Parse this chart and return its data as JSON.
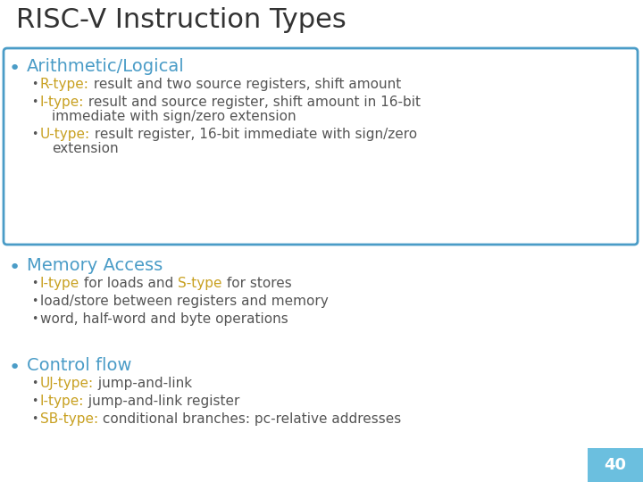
{
  "title": "RISC-V Instruction Types",
  "title_color": "#333333",
  "title_fontsize": 22,
  "background_color": "#ffffff",
  "section_heading_color": "#4a9cc7",
  "bullet_dot_color": "#4a9cc7",
  "orange_color": "#c8a020",
  "body_color": "#555555",
  "box_border_color": "#4a9cc7",
  "page_number": "40",
  "page_number_bg": "#6bbfdf",
  "sections": [
    {
      "heading": "Arithmetic/Logical",
      "has_box": true,
      "bullets": [
        {
          "line1_parts": [
            {
              "text": "R-type:",
              "color": "#c8a020",
              "bold": false
            },
            {
              "text": " result and two source registers, shift amount",
              "color": "#555555",
              "bold": false
            }
          ],
          "line2_parts": []
        },
        {
          "line1_parts": [
            {
              "text": "I-type:",
              "color": "#c8a020",
              "bold": false
            },
            {
              "text": " result and source register, shift amount in 16-bit",
              "color": "#555555",
              "bold": false
            }
          ],
          "line2_parts": [
            {
              "text": "immediate with sign/zero extension",
              "color": "#555555",
              "bold": false
            }
          ]
        },
        {
          "line1_parts": [
            {
              "text": "U-type:",
              "color": "#c8a020",
              "bold": false
            },
            {
              "text": " result register, 16-bit immediate with sign/zero",
              "color": "#555555",
              "bold": false
            }
          ],
          "line2_parts": [
            {
              "text": "extension",
              "color": "#555555",
              "bold": false
            }
          ]
        }
      ]
    },
    {
      "heading": "Memory Access",
      "has_box": false,
      "bullets": [
        {
          "line1_parts": [
            {
              "text": "I-type",
              "color": "#c8a020",
              "bold": false
            },
            {
              "text": " for loads and ",
              "color": "#555555",
              "bold": false
            },
            {
              "text": "S-type",
              "color": "#c8a020",
              "bold": false
            },
            {
              "text": " for stores",
              "color": "#555555",
              "bold": false
            }
          ],
          "line2_parts": []
        },
        {
          "line1_parts": [
            {
              "text": "load/store between registers and memory",
              "color": "#555555",
              "bold": false
            }
          ],
          "line2_parts": []
        },
        {
          "line1_parts": [
            {
              "text": "word, half-word and byte operations",
              "color": "#555555",
              "bold": false
            }
          ],
          "line2_parts": []
        }
      ]
    },
    {
      "heading": "Control flow",
      "has_box": false,
      "bullets": [
        {
          "line1_parts": [
            {
              "text": "UJ-type:",
              "color": "#c8a020",
              "bold": false
            },
            {
              "text": " jump-and-link",
              "color": "#555555",
              "bold": false
            }
          ],
          "line2_parts": []
        },
        {
          "line1_parts": [
            {
              "text": "I-type:",
              "color": "#c8a020",
              "bold": false
            },
            {
              "text": " jump-and-link register",
              "color": "#555555",
              "bold": false
            }
          ],
          "line2_parts": []
        },
        {
          "line1_parts": [
            {
              "text": "SB-type:",
              "color": "#c8a020",
              "bold": false
            },
            {
              "text": " conditional branches: pc-relative addresses",
              "color": "#555555",
              "bold": false
            }
          ],
          "line2_parts": []
        }
      ]
    }
  ]
}
